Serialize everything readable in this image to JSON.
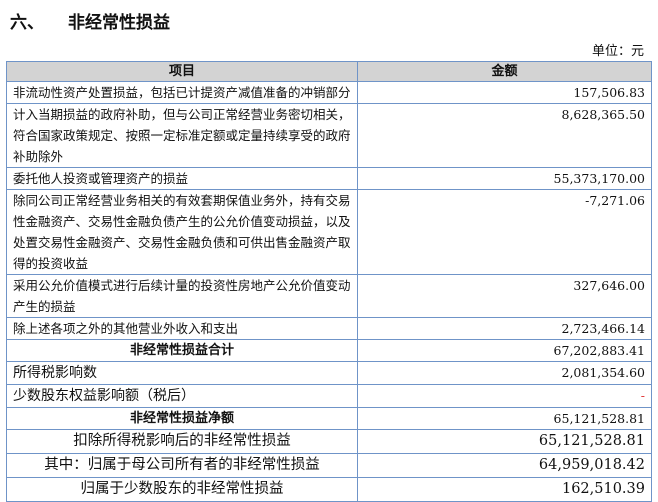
{
  "section": {
    "number": "六、",
    "title": "非经常性损益"
  },
  "unit": "单位：元",
  "table": {
    "headers": [
      "项目",
      "金额"
    ],
    "rows": [
      {
        "item": "非流动性资产处置损益，包括已计提资产减值准备的冲销部分",
        "amount": "157,506.83",
        "style": ""
      },
      {
        "item": "计入当期损益的政府补助，但与公司正常经营业务密切相关，符合国家政策规定、按照一定标准定额或定量持续享受的政府补助除外",
        "amount": "8,628,365.50",
        "style": ""
      },
      {
        "item": "委托他人投资或管理资产的损益",
        "amount": "55,373,170.00",
        "style": ""
      },
      {
        "item": "除同公司正常经营业务相关的有效套期保值业务外，持有交易性金融资产、交易性金融负债产生的公允价值变动损益，以及处置交易性金融资产、交易性金融负债和可供出售金融资产取得的投资收益",
        "amount": "-7,271.06",
        "style": ""
      },
      {
        "item": "采用公允价值模式进行后续计量的投资性房地产公允价值变动产生的损益",
        "amount": "327,646.00",
        "style": ""
      },
      {
        "item": "除上述各项之外的其他营业外收入和支出",
        "amount": "2,723,466.14",
        "style": ""
      },
      {
        "item": "非经常性损益合计",
        "amount": "67,202,883.41",
        "style": "bold"
      },
      {
        "item": "所得税影响数",
        "amount": "2,081,354.60",
        "style": "mid"
      },
      {
        "item": "少数股东权益影响额（税后）",
        "amount": "-",
        "style": "mid red"
      },
      {
        "item": "非经常性损益净额",
        "amount": "65,121,528.81",
        "style": "bold"
      },
      {
        "item": "扣除所得税影响后的非经常性损益",
        "amount": "65,121,528.81",
        "style": "big"
      },
      {
        "item": "其中：归属于母公司所有者的非经常性损益",
        "amount": "64,959,018.42",
        "style": "big"
      },
      {
        "item": "归属于少数股东的非经常性损益",
        "amount": "162,510.39",
        "style": "big"
      }
    ]
  },
  "colors": {
    "border": "#6f94c8",
    "header_bg": "#d3d3d3",
    "dash": "#e03030"
  }
}
